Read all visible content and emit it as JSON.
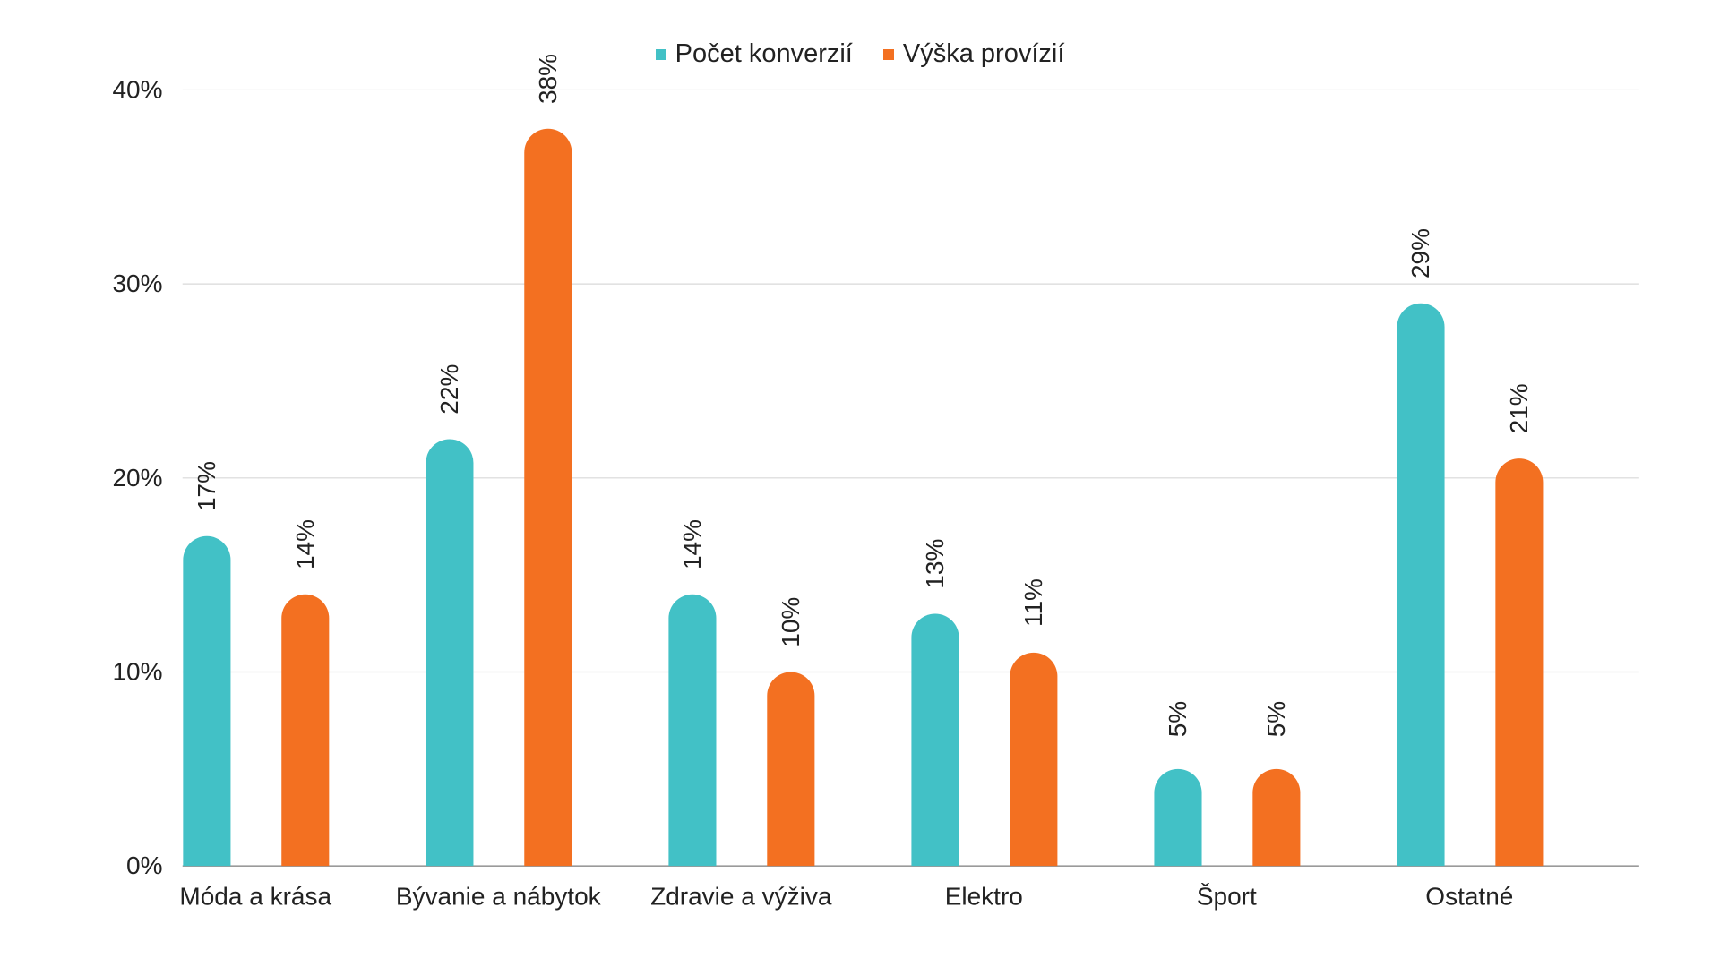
{
  "chart_data": {
    "type": "bar",
    "categories": [
      "Móda a krása",
      "Bývanie a nábytok",
      "Zdravie a výživa",
      "Elektro",
      "Šport",
      "Ostatné"
    ],
    "series": [
      {
        "name": "Počet konverzií",
        "color": "#42C1C6",
        "values": [
          17,
          22,
          14,
          13,
          5,
          29
        ],
        "labels": [
          "17%",
          "22%",
          "14%",
          "13%",
          "5%",
          "29%"
        ]
      },
      {
        "name": "Výška provízií",
        "color": "#F37021",
        "values": [
          14,
          38,
          10,
          11,
          5,
          21
        ],
        "labels": [
          "14%",
          "38%",
          "10%",
          "11%",
          "5%",
          "21%"
        ]
      }
    ],
    "yticks": [
      0,
      10,
      20,
      30,
      40
    ],
    "ytick_labels": [
      "0%",
      "10%",
      "20%",
      "30%",
      "40%"
    ],
    "ylim": [
      0,
      40
    ],
    "grid": true,
    "legend_position": "top-center",
    "title": "",
    "xlabel": "",
    "ylabel": ""
  }
}
